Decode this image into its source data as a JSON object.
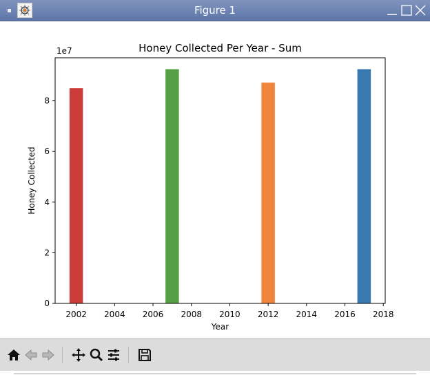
{
  "window": {
    "title": "Figure 1"
  },
  "toolbar": {
    "tools": [
      "home-icon",
      "back-arrow-icon",
      "forward-arrow-icon",
      "pan-icon",
      "zoom-icon",
      "configure-subplots-icon",
      "save-icon"
    ]
  },
  "chart_data": {
    "type": "bar",
    "title": "Honey Collected Per Year - Sum",
    "xlabel": "Year",
    "ylabel": "Honey Collected",
    "y_offset_label": "1e7",
    "xlim": [
      2000.9,
      2018.1
    ],
    "ylim": [
      0,
      97000000
    ],
    "x_ticks": [
      2002,
      2004,
      2006,
      2008,
      2010,
      2012,
      2014,
      2016,
      2018
    ],
    "x_tick_labels": [
      "2002",
      "2004",
      "2006",
      "2008",
      "2010",
      "2012",
      "2014",
      "2016",
      "2018"
    ],
    "y_ticks": [
      0,
      20000000,
      40000000,
      60000000,
      80000000
    ],
    "y_tick_labels": [
      "0",
      "2",
      "4",
      "6",
      "8"
    ],
    "bar_width": 0.7,
    "x": [
      2002,
      2007,
      2012,
      2017
    ],
    "values": [
      85000000,
      92500000,
      87200000,
      92500000
    ],
    "colors": [
      "#cc3d3a",
      "#55a045",
      "#f0853c",
      "#3a78b0"
    ],
    "grid": false
  }
}
